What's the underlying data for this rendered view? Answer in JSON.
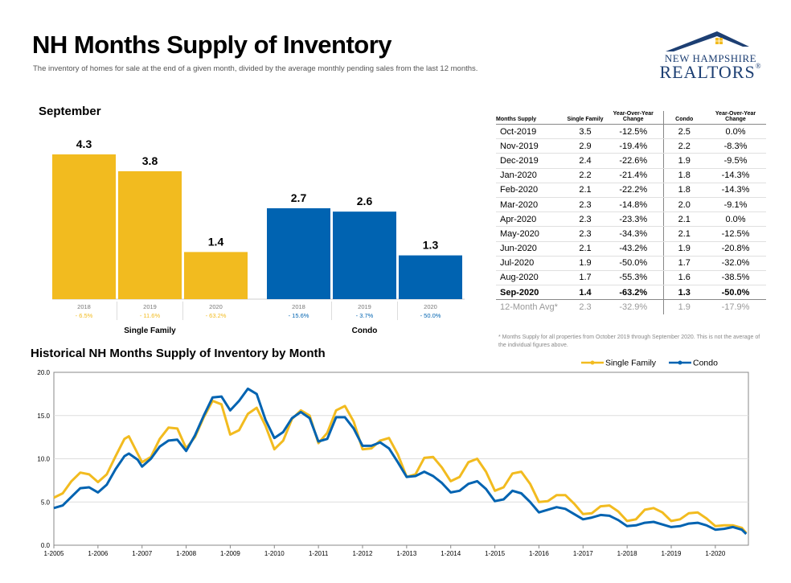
{
  "header": {
    "title": "NH Months Supply of Inventory",
    "subtitle": "The inventory of homes for sale at the end of a given month, divided by the average monthly pending sales from the last 12 months.",
    "logo_line1": "NEW HAMPSHIRE",
    "logo_line2": "REALTORS",
    "logo_reg": "®"
  },
  "colors": {
    "single_family": "#f2bb1f",
    "condo": "#0063b1",
    "logo_blue": "#1d3f73"
  },
  "september": {
    "title": "September"
  },
  "historical": {
    "title": "Historical NH Months Supply of Inventory by Month"
  },
  "table": {
    "headers": {
      "months_supply": "Months Supply",
      "single_family": "Single Family",
      "yoy1": "Year-Over-Year Change",
      "condo": "Condo",
      "yoy2": "Year-Over-Year Change"
    },
    "rows": [
      {
        "month": "Oct-2019",
        "sf": "3.5",
        "sf_chg": "-12.5%",
        "condo": "2.5",
        "condo_chg": "0.0%"
      },
      {
        "month": "Nov-2019",
        "sf": "2.9",
        "sf_chg": "-19.4%",
        "condo": "2.2",
        "condo_chg": "-8.3%"
      },
      {
        "month": "Dec-2019",
        "sf": "2.4",
        "sf_chg": "-22.6%",
        "condo": "1.9",
        "condo_chg": "-9.5%"
      },
      {
        "month": "Jan-2020",
        "sf": "2.2",
        "sf_chg": "-21.4%",
        "condo": "1.8",
        "condo_chg": "-14.3%"
      },
      {
        "month": "Feb-2020",
        "sf": "2.1",
        "sf_chg": "-22.2%",
        "condo": "1.8",
        "condo_chg": "-14.3%"
      },
      {
        "month": "Mar-2020",
        "sf": "2.3",
        "sf_chg": "-14.8%",
        "condo": "2.0",
        "condo_chg": "-9.1%"
      },
      {
        "month": "Apr-2020",
        "sf": "2.3",
        "sf_chg": "-23.3%",
        "condo": "2.1",
        "condo_chg": "0.0%"
      },
      {
        "month": "May-2020",
        "sf": "2.3",
        "sf_chg": "-34.3%",
        "condo": "2.1",
        "condo_chg": "-12.5%"
      },
      {
        "month": "Jun-2020",
        "sf": "2.1",
        "sf_chg": "-43.2%",
        "condo": "1.9",
        "condo_chg": "-20.8%"
      },
      {
        "month": "Jul-2020",
        "sf": "1.9",
        "sf_chg": "-50.0%",
        "condo": "1.7",
        "condo_chg": "-32.0%"
      },
      {
        "month": "Aug-2020",
        "sf": "1.7",
        "sf_chg": "-55.3%",
        "condo": "1.6",
        "condo_chg": "-38.5%"
      },
      {
        "month": "Sep-2020",
        "sf": "1.4",
        "sf_chg": "-63.2%",
        "condo": "1.3",
        "condo_chg": "-50.0%"
      }
    ],
    "avg": {
      "month": "12-Month Avg*",
      "sf": "2.3",
      "sf_chg": "-32.9%",
      "condo": "1.9",
      "condo_chg": "-17.9%"
    },
    "footnote": "* Months Supply for all properties from October 2019 through September 2020. This is not the average of the individual figures above."
  },
  "chart_data": [
    {
      "type": "bar",
      "title": "September",
      "ylim": [
        0,
        5
      ],
      "groups": [
        {
          "name": "Single Family",
          "color": "#f2bb1f",
          "categories": [
            "2018",
            "2019",
            "2020"
          ],
          "values": [
            4.3,
            3.8,
            1.4
          ],
          "labels": [
            "4.3",
            "3.8",
            "1.4"
          ],
          "changes": [
            "- 6.5%",
            "- 11.6%",
            "- 63.2%"
          ]
        },
        {
          "name": "Condo",
          "color": "#0063b1",
          "categories": [
            "2018",
            "2019",
            "2020"
          ],
          "values": [
            2.7,
            2.6,
            1.3
          ],
          "labels": [
            "2.7",
            "2.6",
            "1.3"
          ],
          "changes": [
            "- 15.6%",
            "- 3.7%",
            "- 50.0%"
          ]
        }
      ]
    },
    {
      "type": "line",
      "title": "Historical NH Months Supply of Inventory by Month",
      "ylim": [
        0,
        20
      ],
      "yticks": [
        "0.0",
        "5.0",
        "10.0",
        "15.0",
        "20.0"
      ],
      "xticks": [
        "1-2005",
        "1-2006",
        "1-2007",
        "1-2008",
        "1-2009",
        "1-2010",
        "1-2011",
        "1-2012",
        "1-2013",
        "1-2014",
        "1-2015",
        "1-2016",
        "1-2017",
        "1-2018",
        "1-2019",
        "1-2020"
      ],
      "x_start": "1-2005",
      "legend": "top-right",
      "grid": true,
      "series": [
        {
          "name": "Single Family",
          "color": "#f2bb1f",
          "points": [
            [
              2005.0,
              5.5
            ],
            [
              2005.2,
              6.0
            ],
            [
              2005.4,
              7.4
            ],
            [
              2005.6,
              8.4
            ],
            [
              2005.8,
              8.2
            ],
            [
              2006.0,
              7.3
            ],
            [
              2006.2,
              8.2
            ],
            [
              2006.4,
              10.3
            ],
            [
              2006.6,
              12.3
            ],
            [
              2006.7,
              12.6
            ],
            [
              2006.9,
              10.6
            ],
            [
              2007.0,
              9.6
            ],
            [
              2007.2,
              10.2
            ],
            [
              2007.4,
              12.3
            ],
            [
              2007.6,
              13.6
            ],
            [
              2007.8,
              13.5
            ],
            [
              2008.0,
              11.2
            ],
            [
              2008.2,
              12.5
            ],
            [
              2008.4,
              14.8
            ],
            [
              2008.6,
              16.7
            ],
            [
              2008.8,
              16.3
            ],
            [
              2009.0,
              12.8
            ],
            [
              2009.2,
              13.3
            ],
            [
              2009.4,
              15.2
            ],
            [
              2009.6,
              15.9
            ],
            [
              2009.8,
              13.8
            ],
            [
              2010.0,
              11.1
            ],
            [
              2010.2,
              12.1
            ],
            [
              2010.4,
              14.6
            ],
            [
              2010.6,
              15.6
            ],
            [
              2010.8,
              15.0
            ],
            [
              2011.0,
              11.8
            ],
            [
              2011.2,
              13.0
            ],
            [
              2011.4,
              15.6
            ],
            [
              2011.6,
              16.1
            ],
            [
              2011.8,
              14.3
            ],
            [
              2012.0,
              11.1
            ],
            [
              2012.2,
              11.2
            ],
            [
              2012.4,
              12.1
            ],
            [
              2012.6,
              12.4
            ],
            [
              2012.8,
              10.5
            ],
            [
              2013.0,
              7.9
            ],
            [
              2013.2,
              8.2
            ],
            [
              2013.4,
              10.1
            ],
            [
              2013.6,
              10.2
            ],
            [
              2013.8,
              9.0
            ],
            [
              2014.0,
              7.4
            ],
            [
              2014.2,
              7.9
            ],
            [
              2014.4,
              9.6
            ],
            [
              2014.6,
              10.0
            ],
            [
              2014.8,
              8.5
            ],
            [
              2015.0,
              6.3
            ],
            [
              2015.2,
              6.7
            ],
            [
              2015.4,
              8.3
            ],
            [
              2015.6,
              8.5
            ],
            [
              2015.8,
              7.1
            ],
            [
              2016.0,
              5.0
            ],
            [
              2016.2,
              5.1
            ],
            [
              2016.4,
              5.8
            ],
            [
              2016.6,
              5.8
            ],
            [
              2016.8,
              4.8
            ],
            [
              2017.0,
              3.6
            ],
            [
              2017.2,
              3.7
            ],
            [
              2017.4,
              4.5
            ],
            [
              2017.6,
              4.6
            ],
            [
              2017.8,
              3.9
            ],
            [
              2018.0,
              2.8
            ],
            [
              2018.2,
              3.0
            ],
            [
              2018.4,
              4.1
            ],
            [
              2018.6,
              4.3
            ],
            [
              2018.8,
              3.8
            ],
            [
              2019.0,
              2.8
            ],
            [
              2019.2,
              3.0
            ],
            [
              2019.4,
              3.7
            ],
            [
              2019.6,
              3.8
            ],
            [
              2019.8,
              3.1
            ],
            [
              2020.0,
              2.2
            ],
            [
              2020.2,
              2.3
            ],
            [
              2020.4,
              2.3
            ],
            [
              2020.6,
              2.0
            ],
            [
              2020.7,
              1.4
            ]
          ]
        },
        {
          "name": "Condo",
          "color": "#0063b1",
          "points": [
            [
              2005.0,
              4.3
            ],
            [
              2005.2,
              4.6
            ],
            [
              2005.4,
              5.6
            ],
            [
              2005.6,
              6.6
            ],
            [
              2005.8,
              6.7
            ],
            [
              2006.0,
              6.1
            ],
            [
              2006.2,
              7.0
            ],
            [
              2006.4,
              8.8
            ],
            [
              2006.6,
              10.3
            ],
            [
              2006.7,
              10.6
            ],
            [
              2006.9,
              9.9
            ],
            [
              2007.0,
              9.1
            ],
            [
              2007.2,
              10.0
            ],
            [
              2007.4,
              11.4
            ],
            [
              2007.6,
              12.1
            ],
            [
              2007.8,
              12.2
            ],
            [
              2008.0,
              10.9
            ],
            [
              2008.2,
              12.7
            ],
            [
              2008.4,
              15.0
            ],
            [
              2008.6,
              17.1
            ],
            [
              2008.8,
              17.2
            ],
            [
              2009.0,
              15.6
            ],
            [
              2009.2,
              16.7
            ],
            [
              2009.4,
              18.1
            ],
            [
              2009.6,
              17.5
            ],
            [
              2009.8,
              14.5
            ],
            [
              2010.0,
              12.4
            ],
            [
              2010.2,
              13.1
            ],
            [
              2010.4,
              14.7
            ],
            [
              2010.6,
              15.4
            ],
            [
              2010.8,
              14.7
            ],
            [
              2011.0,
              12.0
            ],
            [
              2011.2,
              12.3
            ],
            [
              2011.4,
              14.8
            ],
            [
              2011.6,
              14.8
            ],
            [
              2011.8,
              13.5
            ],
            [
              2012.0,
              11.5
            ],
            [
              2012.2,
              11.5
            ],
            [
              2012.4,
              11.9
            ],
            [
              2012.6,
              11.2
            ],
            [
              2012.8,
              9.6
            ],
            [
              2013.0,
              7.9
            ],
            [
              2013.2,
              8.0
            ],
            [
              2013.4,
              8.5
            ],
            [
              2013.6,
              8.0
            ],
            [
              2013.8,
              7.2
            ],
            [
              2014.0,
              6.1
            ],
            [
              2014.2,
              6.3
            ],
            [
              2014.4,
              7.1
            ],
            [
              2014.6,
              7.4
            ],
            [
              2014.8,
              6.5
            ],
            [
              2015.0,
              5.1
            ],
            [
              2015.2,
              5.3
            ],
            [
              2015.4,
              6.3
            ],
            [
              2015.6,
              6.0
            ],
            [
              2015.8,
              5.0
            ],
            [
              2016.0,
              3.8
            ],
            [
              2016.2,
              4.1
            ],
            [
              2016.4,
              4.4
            ],
            [
              2016.6,
              4.2
            ],
            [
              2016.8,
              3.6
            ],
            [
              2017.0,
              3.0
            ],
            [
              2017.2,
              3.2
            ],
            [
              2017.4,
              3.5
            ],
            [
              2017.6,
              3.4
            ],
            [
              2017.8,
              2.9
            ],
            [
              2018.0,
              2.2
            ],
            [
              2018.2,
              2.3
            ],
            [
              2018.4,
              2.6
            ],
            [
              2018.6,
              2.7
            ],
            [
              2018.8,
              2.4
            ],
            [
              2019.0,
              2.1
            ],
            [
              2019.2,
              2.2
            ],
            [
              2019.4,
              2.5
            ],
            [
              2019.6,
              2.6
            ],
            [
              2019.8,
              2.3
            ],
            [
              2020.0,
              1.8
            ],
            [
              2020.2,
              1.9
            ],
            [
              2020.4,
              2.1
            ],
            [
              2020.6,
              1.8
            ],
            [
              2020.7,
              1.3
            ]
          ]
        }
      ]
    }
  ]
}
